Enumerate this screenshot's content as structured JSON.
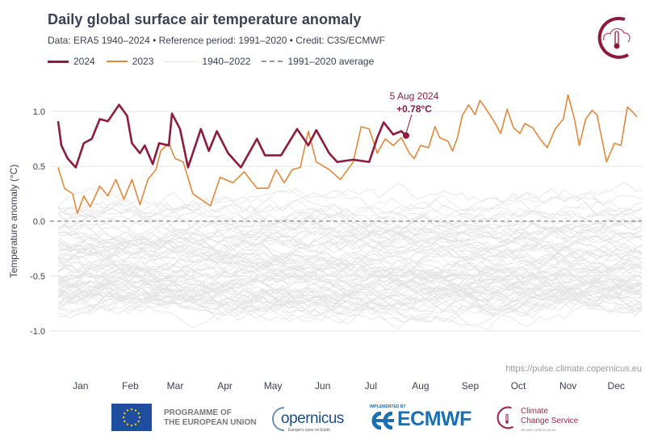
{
  "header": {
    "title": "Daily global surface air temperature anomaly",
    "subtitle": "Data: ERA5 1940–2024  •  Reference period: 1991–2020  •  Credit: C3S/ECMWF"
  },
  "legend": {
    "items": [
      {
        "label": "2024",
        "color": "#8e1b3c",
        "style": "solid-thick"
      },
      {
        "label": "2023",
        "color": "#e3883a",
        "style": "solid"
      },
      {
        "label": "1940–2022",
        "color": "#e3e3e3",
        "style": "solid-thin"
      },
      {
        "label": "1991–2020 average",
        "color": "#999999",
        "style": "dashed"
      }
    ],
    "placement": "top-left"
  },
  "source_url": "https://pulse.climate.copernicus.eu",
  "logos": {
    "top_right": "climate-change-service-icon",
    "eu_text_1": "PROGRAMME OF",
    "eu_text_2": "THE EUROPEAN UNION",
    "copernicus": "opernicus",
    "copernicus_tagline": "Europe's eyes on Earth",
    "implemented_by": "IMPLEMENTED BY",
    "ecmwf": "ECMWF",
    "ccs_1": "Climate",
    "ccs_2": "Change Service",
    "ccs_url": "climate.copernicus.eu"
  },
  "chart_data": {
    "type": "line",
    "title": "Daily global surface air temperature anomaly",
    "xlabel": "",
    "ylabel": "Temperature anomaly (°C)",
    "ylim": [
      -1.2,
      1.25
    ],
    "yticks": [
      "1.0",
      "0.5",
      "0.0",
      "-0.5",
      "-1.0"
    ],
    "ytick_values": [
      1.0,
      0.5,
      0.0,
      -0.5,
      -1.0
    ],
    "xticks": [
      "Jan",
      "Feb",
      "Mar",
      "Apr",
      "May",
      "Jun",
      "Jul",
      "Aug",
      "Sep",
      "Oct",
      "Nov",
      "Dec"
    ],
    "grid": true,
    "reference_line": {
      "label": "1991–2020 average",
      "value": 0.0,
      "style": "dashed"
    },
    "annotation": {
      "date": "5 Aug 2024",
      "value_label": "+0.78°C",
      "x": "2024-08-05",
      "y": 0.78
    },
    "background_series": {
      "name": "1940–2022",
      "years": [
        1940,
        2022
      ],
      "approx_range": [
        -1.2,
        0.65
      ],
      "color": "#e3e3e3"
    },
    "series": [
      {
        "name": "2023",
        "color": "#e3883a",
        "x": [
          "2023-01-01",
          "2023-01-05",
          "2023-01-10",
          "2023-01-13",
          "2023-01-17",
          "2023-01-21",
          "2023-01-27",
          "2023-02-01",
          "2023-02-06",
          "2023-02-11",
          "2023-02-16",
          "2023-02-21",
          "2023-02-26",
          "2023-03-03",
          "2023-03-06",
          "2023-03-11",
          "2023-03-15",
          "2023-03-20",
          "2023-03-26",
          "2023-04-06",
          "2023-04-12",
          "2023-04-20",
          "2023-04-27",
          "2023-05-05",
          "2023-05-12",
          "2023-05-17",
          "2023-05-22",
          "2023-05-27",
          "2023-06-01",
          "2023-06-06",
          "2023-06-11",
          "2023-06-19",
          "2023-06-26",
          "2023-07-04",
          "2023-07-09",
          "2023-07-14",
          "2023-07-19",
          "2023-07-24",
          "2023-07-29",
          "2023-08-03",
          "2023-08-08",
          "2023-08-11",
          "2023-08-15",
          "2023-08-20",
          "2023-08-24",
          "2023-08-27",
          "2023-09-01",
          "2023-09-04",
          "2023-09-07",
          "2023-09-10",
          "2023-09-14",
          "2023-09-18",
          "2023-09-21",
          "2023-09-24",
          "2023-09-29",
          "2023-10-04",
          "2023-10-08",
          "2023-10-12",
          "2023-10-16",
          "2023-10-19",
          "2023-10-24",
          "2023-10-29",
          "2023-11-02",
          "2023-11-07",
          "2023-11-12",
          "2023-11-15",
          "2023-11-19",
          "2023-11-22",
          "2023-11-26",
          "2023-11-30",
          "2023-12-03",
          "2023-12-09",
          "2023-12-14",
          "2023-12-18",
          "2023-12-22",
          "2023-12-25",
          "2023-12-28"
        ],
        "values": [
          0.49,
          0.3,
          0.25,
          0.07,
          0.23,
          0.13,
          0.32,
          0.23,
          0.38,
          0.2,
          0.38,
          0.15,
          0.38,
          0.47,
          0.64,
          0.71,
          0.57,
          0.54,
          0.25,
          0.14,
          0.4,
          0.35,
          0.45,
          0.3,
          0.3,
          0.47,
          0.35,
          0.47,
          0.49,
          0.82,
          0.54,
          0.47,
          0.38,
          0.54,
          0.86,
          0.84,
          0.62,
          0.75,
          0.69,
          0.76,
          0.62,
          0.57,
          0.69,
          0.67,
          0.86,
          0.76,
          0.73,
          0.64,
          0.76,
          0.96,
          1.06,
          0.97,
          1.1,
          1.04,
          0.93,
          0.8,
          1.02,
          0.85,
          0.8,
          0.89,
          0.85,
          0.74,
          0.67,
          0.84,
          0.93,
          1.15,
          0.93,
          0.69,
          0.93,
          1.01,
          0.97,
          0.54,
          0.71,
          0.69,
          1.04,
          1.0,
          0.95
        ]
      },
      {
        "name": "2024",
        "color": "#8e1b3c",
        "x": [
          "2024-01-01",
          "2024-01-03",
          "2024-01-07",
          "2024-01-12",
          "2024-01-17",
          "2024-01-22",
          "2024-01-27",
          "2024-02-01",
          "2024-02-08",
          "2024-02-13",
          "2024-02-16",
          "2024-02-21",
          "2024-02-24",
          "2024-02-29",
          "2024-03-04",
          "2024-03-10",
          "2024-03-12",
          "2024-03-17",
          "2024-03-22",
          "2024-03-30",
          "2024-04-04",
          "2024-04-09",
          "2024-04-16",
          "2024-04-24",
          "2024-05-04",
          "2024-05-09",
          "2024-05-19",
          "2024-05-29",
          "2024-06-05",
          "2024-06-10",
          "2024-06-18",
          "2024-06-23",
          "2024-07-03",
          "2024-07-13",
          "2024-07-18",
          "2024-07-22",
          "2024-07-28",
          "2024-08-02",
          "2024-08-05"
        ],
        "values": [
          0.91,
          0.69,
          0.57,
          0.49,
          0.71,
          0.75,
          0.93,
          0.91,
          1.06,
          0.96,
          0.71,
          0.62,
          0.69,
          0.52,
          0.71,
          0.69,
          0.98,
          0.84,
          0.49,
          0.84,
          0.64,
          0.82,
          0.62,
          0.49,
          0.75,
          0.6,
          0.6,
          0.84,
          0.69,
          0.83,
          0.62,
          0.54,
          0.56,
          0.54,
          0.76,
          0.9,
          0.79,
          0.82,
          0.78
        ]
      }
    ]
  }
}
